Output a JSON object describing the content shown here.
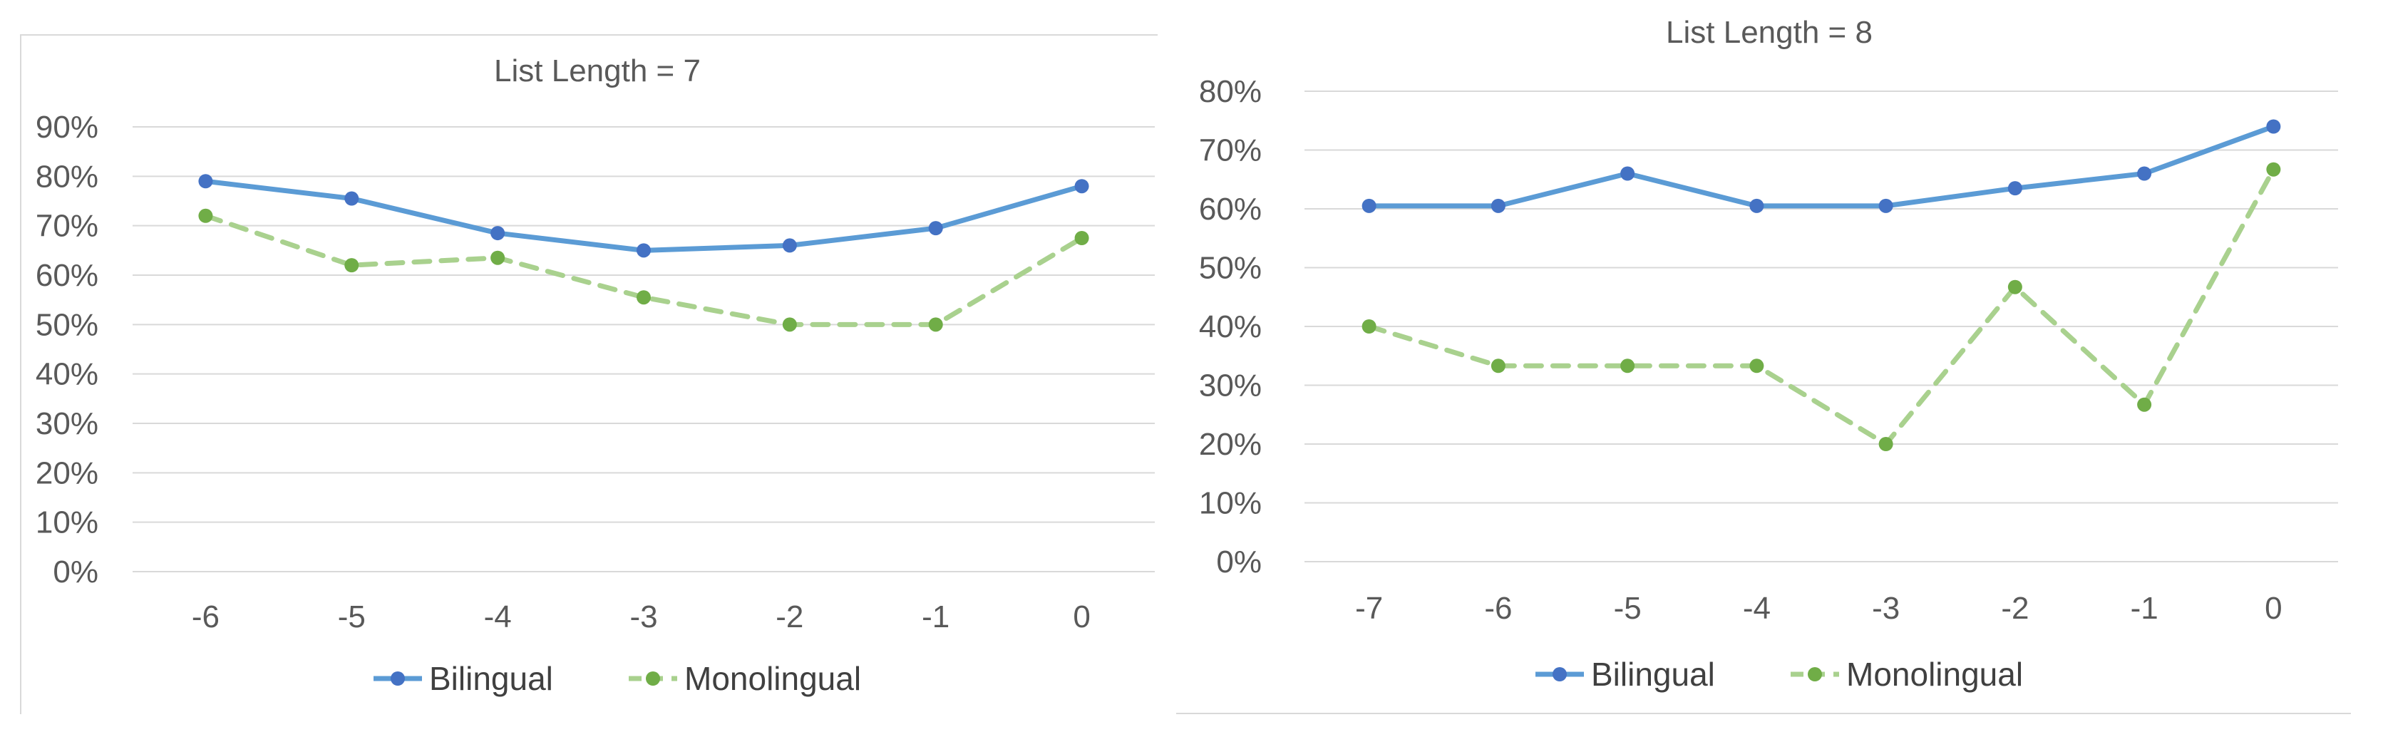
{
  "chart_data": [
    {
      "type": "line",
      "title": "List Length = 7",
      "xlabel": "",
      "ylabel": "",
      "categories": [
        "-6",
        "-5",
        "-4",
        "-3",
        "-2",
        "-1",
        "0"
      ],
      "y_ticks": [
        "0%",
        "10%",
        "20%",
        "30%",
        "40%",
        "50%",
        "60%",
        "70%",
        "80%",
        "90%"
      ],
      "ylim": [
        0,
        90
      ],
      "grid": true,
      "legend_position": "bottom",
      "series": [
        {
          "name": "Bilingual",
          "color": "#5b9bd5",
          "marker_color": "#4472c4",
          "line_style": "solid",
          "values": [
            79,
            75.5,
            68.5,
            65,
            66,
            69.5,
            78
          ]
        },
        {
          "name": "Monolingual",
          "color": "#a9d18e",
          "marker_color": "#70ad47",
          "line_style": "dashed",
          "values": [
            72,
            62,
            63.5,
            55.5,
            50,
            50,
            67.5
          ]
        }
      ]
    },
    {
      "type": "line",
      "title": "List Length = 8",
      "xlabel": "",
      "ylabel": "",
      "categories": [
        "-7",
        "-6",
        "-5",
        "-4",
        "-3",
        "-2",
        "-1",
        "0"
      ],
      "y_ticks": [
        "0%",
        "10%",
        "20%",
        "30%",
        "40%",
        "50%",
        "60%",
        "70%",
        "80%"
      ],
      "ylim": [
        0,
        80
      ],
      "grid": true,
      "legend_position": "bottom",
      "series": [
        {
          "name": "Bilingual",
          "color": "#5b9bd5",
          "marker_color": "#4472c4",
          "line_style": "solid",
          "values": [
            60.5,
            60.5,
            66,
            60.5,
            60.5,
            63.5,
            66,
            74
          ]
        },
        {
          "name": "Monolingual",
          "color": "#a9d18e",
          "marker_color": "#70ad47",
          "line_style": "dashed",
          "values": [
            40,
            33.3,
            33.3,
            33.3,
            20,
            46.7,
            26.7,
            66.7
          ]
        }
      ]
    }
  ]
}
